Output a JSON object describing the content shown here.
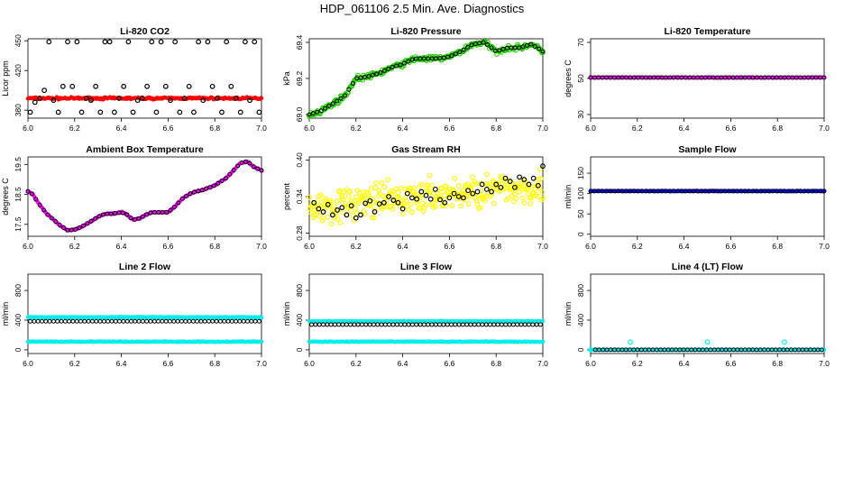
{
  "page_title": "HDP_061106  2.5 Min. Ave. Diagnostics",
  "colors": {
    "red": "#ff0000",
    "green": "#22cc00",
    "magenta": "#ff00ff",
    "yellow": "#ffff00",
    "blue": "#0000ff",
    "cyan": "#00eeee",
    "black": "#000000"
  },
  "chart_data": [
    {
      "type": "scatter",
      "title": "Li-820 CO2",
      "ylabel": "Licor ppm",
      "xlim": [
        6.0,
        7.0
      ],
      "ylim": [
        372,
        452
      ],
      "xticks": [
        "6.0",
        "6.2",
        "6.4",
        "6.6",
        "6.8",
        "7.0"
      ],
      "yticks": [
        [
          380,
          "380"
        ],
        [
          420,
          "420"
        ],
        [
          450,
          "450"
        ]
      ],
      "series": [
        {
          "color": "red",
          "style": "dense",
          "x": [
            6.0,
            7.0
          ],
          "y": [
            392,
            392
          ],
          "noise": 1.2,
          "filled": true
        },
        {
          "color": "black",
          "style": "open",
          "x": [
            6.01,
            6.03,
            6.05,
            6.07,
            6.09,
            6.11,
            6.13,
            6.15,
            6.17,
            6.19,
            6.21,
            6.23,
            6.25,
            6.27,
            6.29,
            6.31,
            6.33,
            6.35,
            6.37,
            6.39,
            6.41,
            6.43,
            6.45,
            6.47,
            6.49,
            6.51,
            6.53,
            6.55,
            6.57,
            6.59,
            6.61,
            6.63,
            6.65,
            6.67,
            6.69,
            6.71,
            6.73,
            6.75,
            6.77,
            6.79,
            6.81,
            6.83,
            6.85,
            6.87,
            6.89,
            6.91,
            6.93,
            6.95,
            6.97,
            6.99
          ],
          "y": [
            378,
            388,
            392,
            400,
            449,
            390,
            378,
            404,
            449,
            404,
            449,
            378,
            392,
            390,
            404,
            378,
            449,
            449,
            378,
            392,
            404,
            449,
            378,
            390,
            392,
            404,
            449,
            378,
            449,
            404,
            390,
            449,
            378,
            392,
            404,
            378,
            449,
            390,
            449,
            404,
            392,
            378,
            449,
            404,
            392,
            378,
            449,
            390,
            449,
            378
          ]
        }
      ]
    },
    {
      "type": "scatter",
      "title": "Li-820 Pressure",
      "ylabel": "kPa",
      "xlim": [
        6.0,
        7.0
      ],
      "ylim": [
        68.98,
        69.42
      ],
      "xticks": [
        "6.0",
        "6.2",
        "6.4",
        "6.6",
        "6.8",
        "7.0"
      ],
      "yticks": [
        [
          69.0,
          "69.0"
        ],
        [
          69.2,
          "69.2"
        ],
        [
          69.4,
          "69.4"
        ]
      ],
      "series": [
        {
          "color": "green",
          "style": "walk",
          "filled": false,
          "x": [
            6.0,
            6.05,
            6.1,
            6.15,
            6.2,
            6.25,
            6.3,
            6.35,
            6.4,
            6.45,
            6.5,
            6.55,
            6.6,
            6.65,
            6.7,
            6.75,
            6.8,
            6.85,
            6.9,
            6.95,
            7.0
          ],
          "y": [
            69.0,
            69.02,
            69.06,
            69.1,
            69.2,
            69.21,
            69.23,
            69.26,
            69.28,
            69.31,
            69.31,
            69.31,
            69.32,
            69.35,
            69.39,
            69.4,
            69.35,
            69.37,
            69.37,
            69.39,
            69.35
          ],
          "noise": 0.015
        },
        {
          "color": "black",
          "style": "track",
          "filled": false,
          "x": [
            6.0,
            6.05,
            6.1,
            6.15,
            6.2,
            6.25,
            6.3,
            6.35,
            6.4,
            6.45,
            6.5,
            6.55,
            6.6,
            6.65,
            6.7,
            6.75,
            6.8,
            6.85,
            6.9,
            6.95,
            7.0
          ],
          "y": [
            69.0,
            69.02,
            69.06,
            69.1,
            69.2,
            69.21,
            69.23,
            69.26,
            69.28,
            69.31,
            69.31,
            69.31,
            69.32,
            69.35,
            69.39,
            69.4,
            69.35,
            69.37,
            69.37,
            69.39,
            69.35
          ]
        }
      ]
    },
    {
      "type": "scatter",
      "title": "Li-820 Temperature",
      "ylabel": "degrees C",
      "xlim": [
        6.0,
        7.0
      ],
      "ylim": [
        28,
        72
      ],
      "xticks": [
        "6.0",
        "6.2",
        "6.4",
        "6.6",
        "6.8",
        "7.0"
      ],
      "yticks": [
        [
          30,
          "30"
        ],
        [
          50,
          "50"
        ],
        [
          70,
          "70"
        ]
      ],
      "series": [
        {
          "color": "magenta",
          "style": "dense",
          "x": [
            6.0,
            7.0
          ],
          "y": [
            50.5,
            50.5
          ],
          "noise": 0.2,
          "filled": true
        },
        {
          "color": "black",
          "style": "track",
          "filled": false,
          "x": [
            6.0,
            7.0
          ],
          "y": [
            50.5,
            50.5
          ]
        }
      ]
    },
    {
      "type": "scatter",
      "title": "Ambient Box Temperature",
      "ylabel": "degrees C",
      "xlim": [
        6.0,
        7.0
      ],
      "ylim": [
        17.1,
        19.75
      ],
      "xticks": [
        "6.0",
        "6.2",
        "6.4",
        "6.6",
        "6.8",
        "7.0"
      ],
      "yticks": [
        [
          17.5,
          "17.5"
        ],
        [
          18.5,
          "18.5"
        ],
        [
          19.5,
          "19.5"
        ]
      ],
      "series": [
        {
          "color": "magenta",
          "style": "walk",
          "filled": true,
          "x": [
            6.0,
            6.02,
            6.05,
            6.08,
            6.11,
            6.14,
            6.17,
            6.2,
            6.23,
            6.27,
            6.3,
            6.33,
            6.36,
            6.4,
            6.42,
            6.45,
            6.48,
            6.5,
            6.53,
            6.56,
            6.6,
            6.63,
            6.66,
            6.7,
            6.75,
            6.8,
            6.85,
            6.88,
            6.91,
            6.94,
            6.97,
            7.0
          ],
          "y": [
            18.6,
            18.5,
            18.15,
            17.85,
            17.65,
            17.45,
            17.3,
            17.32,
            17.42,
            17.6,
            17.75,
            17.85,
            17.85,
            17.9,
            17.85,
            17.65,
            17.7,
            17.8,
            17.9,
            17.9,
            17.9,
            18.1,
            18.35,
            18.55,
            18.65,
            18.8,
            19.05,
            19.3,
            19.55,
            19.6,
            19.4,
            19.3
          ],
          "noise": 0.02
        },
        {
          "color": "black",
          "style": "track",
          "filled": false,
          "x": [
            6.0,
            6.02,
            6.05,
            6.08,
            6.11,
            6.14,
            6.17,
            6.2,
            6.23,
            6.27,
            6.3,
            6.33,
            6.36,
            6.4,
            6.42,
            6.45,
            6.48,
            6.5,
            6.53,
            6.56,
            6.6,
            6.63,
            6.66,
            6.7,
            6.75,
            6.8,
            6.85,
            6.88,
            6.91,
            6.94,
            6.97,
            7.0
          ],
          "y": [
            18.6,
            18.5,
            18.15,
            17.85,
            17.65,
            17.45,
            17.3,
            17.32,
            17.42,
            17.6,
            17.75,
            17.85,
            17.85,
            17.9,
            17.85,
            17.65,
            17.7,
            17.8,
            17.9,
            17.9,
            17.9,
            18.1,
            18.35,
            18.55,
            18.65,
            18.8,
            19.05,
            19.3,
            19.55,
            19.6,
            19.4,
            19.3
          ]
        }
      ]
    },
    {
      "type": "scatter",
      "title": "Gas Stream RH",
      "ylabel": "percent",
      "xlim": [
        6.0,
        7.0
      ],
      "ylim": [
        0.275,
        0.405
      ],
      "xticks": [
        "6.0",
        "6.2",
        "6.4",
        "6.6",
        "6.8",
        "7.0"
      ],
      "yticks": [
        [
          0.28,
          "0.28"
        ],
        [
          0.34,
          "0.34"
        ],
        [
          0.4,
          "0.40"
        ]
      ],
      "series": [
        {
          "color": "yellow",
          "style": "cloud",
          "filled": false,
          "x": [
            6.0,
            7.0
          ],
          "y": [
            0.322,
            0.358
          ],
          "noise": 0.018
        },
        {
          "color": "black",
          "style": "open",
          "x": [
            6.02,
            6.04,
            6.06,
            6.08,
            6.1,
            6.12,
            6.14,
            6.16,
            6.18,
            6.2,
            6.22,
            6.24,
            6.26,
            6.28,
            6.3,
            6.32,
            6.34,
            6.36,
            6.38,
            6.4,
            6.42,
            6.44,
            6.46,
            6.48,
            6.5,
            6.52,
            6.54,
            6.56,
            6.58,
            6.6,
            6.62,
            6.64,
            6.66,
            6.68,
            6.7,
            6.72,
            6.74,
            6.76,
            6.78,
            6.8,
            6.82,
            6.84,
            6.86,
            6.88,
            6.9,
            6.92,
            6.94,
            6.96,
            6.98,
            7.0
          ],
          "y": [
            0.33,
            0.32,
            0.315,
            0.327,
            0.31,
            0.318,
            0.322,
            0.31,
            0.325,
            0.305,
            0.31,
            0.329,
            0.333,
            0.315,
            0.328,
            0.33,
            0.34,
            0.334,
            0.33,
            0.32,
            0.345,
            0.338,
            0.336,
            0.348,
            0.342,
            0.336,
            0.352,
            0.335,
            0.33,
            0.338,
            0.345,
            0.34,
            0.338,
            0.35,
            0.345,
            0.348,
            0.36,
            0.352,
            0.348,
            0.36,
            0.355,
            0.37,
            0.365,
            0.355,
            0.372,
            0.368,
            0.36,
            0.37,
            0.358,
            0.39
          ]
        }
      ]
    },
    {
      "type": "scatter",
      "title": "Sample Flow",
      "ylabel": "ml/min",
      "xlim": [
        6.0,
        7.0
      ],
      "ylim": [
        -5,
        190
      ],
      "xticks": [
        "6.0",
        "6.2",
        "6.4",
        "6.6",
        "6.8",
        "7.0"
      ],
      "yticks": [
        [
          0,
          "0"
        ],
        [
          50,
          "50"
        ],
        [
          100,
          "100"
        ],
        [
          150,
          "150"
        ]
      ],
      "series": [
        {
          "color": "blue",
          "style": "dense",
          "x": [
            6.0,
            7.0
          ],
          "y": [
            106,
            106
          ],
          "noise": 0.8,
          "filled": true
        },
        {
          "color": "black",
          "style": "track",
          "filled": false,
          "x": [
            6.0,
            7.0
          ],
          "y": [
            106,
            106
          ]
        }
      ]
    },
    {
      "type": "scatter",
      "title": "Line 2 Flow",
      "ylabel": "ml/min",
      "xlim": [
        6.0,
        7.0
      ],
      "ylim": [
        -50,
        1020
      ],
      "xticks": [
        "6.0",
        "6.2",
        "6.4",
        "6.6",
        "6.8",
        "7.0"
      ],
      "yticks": [
        [
          0,
          "0"
        ],
        [
          400,
          "400"
        ],
        [
          800,
          "800"
        ]
      ],
      "series": [
        {
          "color": "cyan",
          "style": "dense",
          "x": [
            6.0,
            7.0
          ],
          "y": [
            440,
            440
          ],
          "noise": 6,
          "filled": true
        },
        {
          "color": "cyan",
          "style": "dense",
          "x": [
            6.0,
            7.0
          ],
          "y": [
            110,
            110
          ],
          "noise": 6,
          "filled": true
        },
        {
          "color": "black",
          "style": "track",
          "filled": false,
          "x": [
            6.01,
            6.99
          ],
          "y": [
            385,
            385
          ]
        }
      ]
    },
    {
      "type": "scatter",
      "title": "Line 3 Flow",
      "ylabel": "ml/min",
      "xlim": [
        6.0,
        7.0
      ],
      "ylim": [
        -50,
        1020
      ],
      "xticks": [
        "6.0",
        "6.2",
        "6.4",
        "6.6",
        "6.8",
        "7.0"
      ],
      "yticks": [
        [
          0,
          "0"
        ],
        [
          400,
          "400"
        ],
        [
          800,
          "800"
        ]
      ],
      "series": [
        {
          "color": "cyan",
          "style": "dense",
          "x": [
            6.0,
            7.0
          ],
          "y": [
            385,
            385
          ],
          "noise": 6,
          "filled": true
        },
        {
          "color": "cyan",
          "style": "dense",
          "x": [
            6.0,
            7.0
          ],
          "y": [
            110,
            110
          ],
          "noise": 6,
          "filled": true
        },
        {
          "color": "black",
          "style": "track",
          "filled": false,
          "x": [
            6.01,
            6.99
          ],
          "y": [
            340,
            340
          ]
        }
      ]
    },
    {
      "type": "scatter",
      "title": "Line 4 (LT) Flow",
      "ylabel": "ml/min",
      "xlim": [
        6.0,
        7.0
      ],
      "ylim": [
        -50,
        1020
      ],
      "xticks": [
        "6.0",
        "6.2",
        "6.4",
        "6.6",
        "6.8",
        "7.0"
      ],
      "yticks": [
        [
          0,
          "0"
        ],
        [
          400,
          "400"
        ],
        [
          800,
          "800"
        ]
      ],
      "series": [
        {
          "color": "cyan",
          "style": "dense",
          "x": [
            6.0,
            7.0
          ],
          "y": [
            0,
            0
          ],
          "noise": 3,
          "filled": true
        },
        {
          "color": "cyan",
          "style": "open",
          "x": [
            6.0,
            6.17,
            6.5,
            6.83
          ],
          "y": [
            0,
            105,
            105,
            105
          ]
        },
        {
          "color": "black",
          "style": "track",
          "filled": false,
          "x": [
            6.02,
            6.99
          ],
          "y": [
            0,
            0
          ]
        }
      ]
    }
  ]
}
